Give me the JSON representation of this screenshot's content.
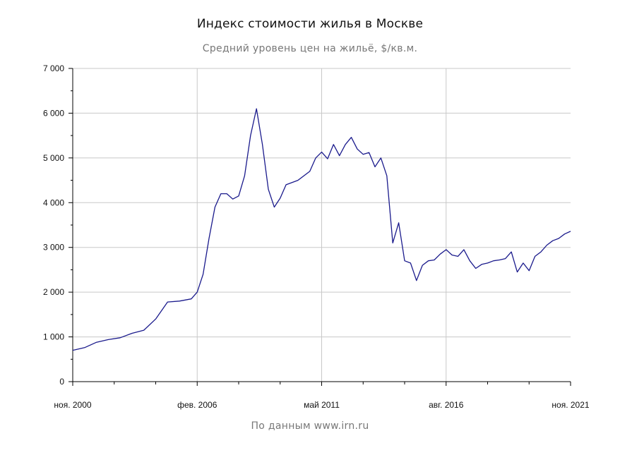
{
  "chart_data": {
    "type": "line",
    "title": "Индекс стоимости жилья в Москве",
    "subtitle": "Средний уровень цен на жильё, $/кв.м.",
    "source": "По данным www.irn.ru",
    "xlabel": "",
    "ylabel": "",
    "ylim": [
      0,
      7000
    ],
    "y_ticks": [
      0,
      1000,
      2000,
      3000,
      4000,
      5000,
      6000,
      7000
    ],
    "y_tick_labels": [
      "0",
      "1 000",
      "2 000",
      "3 000",
      "4 000",
      "5 000",
      "6 000",
      "7 000"
    ],
    "x_range": [
      "2000-11",
      "2021-11"
    ],
    "x_tick_labels": [
      {
        "date": "2000-11",
        "label": "ноя. 2000"
      },
      {
        "date": "2006-02",
        "label": "фев. 2006"
      },
      {
        "date": "2011-05",
        "label": "май 2011"
      },
      {
        "date": "2016-08",
        "label": "авг. 2016"
      },
      {
        "date": "2021-11",
        "label": "ноя. 2021"
      }
    ],
    "grid": true,
    "line_color": "#1a1a8c",
    "series": [
      {
        "name": "",
        "x": [
          "2000-11",
          "2001-05",
          "2001-11",
          "2002-05",
          "2002-11",
          "2003-05",
          "2003-11",
          "2004-05",
          "2004-11",
          "2005-05",
          "2005-11",
          "2006-02",
          "2006-05",
          "2006-08",
          "2006-11",
          "2007-02",
          "2007-05",
          "2007-08",
          "2007-11",
          "2008-02",
          "2008-05",
          "2008-08",
          "2008-11",
          "2009-02",
          "2009-05",
          "2009-08",
          "2009-11",
          "2010-05",
          "2010-11",
          "2011-02",
          "2011-05",
          "2011-08",
          "2011-11",
          "2012-02",
          "2012-05",
          "2012-08",
          "2012-11",
          "2013-02",
          "2013-05",
          "2013-08",
          "2013-11",
          "2014-02",
          "2014-05",
          "2014-08",
          "2014-11",
          "2015-02",
          "2015-05",
          "2015-08",
          "2015-11",
          "2016-02",
          "2016-05",
          "2016-08",
          "2016-11",
          "2017-02",
          "2017-05",
          "2017-08",
          "2017-11",
          "2018-02",
          "2018-05",
          "2018-08",
          "2018-11",
          "2019-02",
          "2019-05",
          "2019-08",
          "2019-11",
          "2020-02",
          "2020-05",
          "2020-08",
          "2020-11",
          "2021-02",
          "2021-05",
          "2021-08",
          "2021-11"
        ],
        "y": [
          700,
          760,
          880,
          940,
          980,
          1080,
          1150,
          1400,
          1780,
          1800,
          1850,
          2000,
          2400,
          3200,
          3900,
          4200,
          4200,
          4080,
          4150,
          4600,
          5500,
          6100,
          5300,
          4300,
          3900,
          4100,
          4400,
          4500,
          4700,
          5000,
          5130,
          4980,
          5300,
          5050,
          5300,
          5460,
          5200,
          5080,
          5120,
          4800,
          5000,
          4600,
          3100,
          3550,
          2700,
          2650,
          2260,
          2600,
          2700,
          2720,
          2850,
          2950,
          2830,
          2800,
          2950,
          2700,
          2530,
          2620,
          2650,
          2700,
          2720,
          2750,
          2900,
          2450,
          2650,
          2480,
          2800,
          2900,
          3050,
          3150,
          3200,
          3300,
          3360
        ]
      }
    ]
  }
}
